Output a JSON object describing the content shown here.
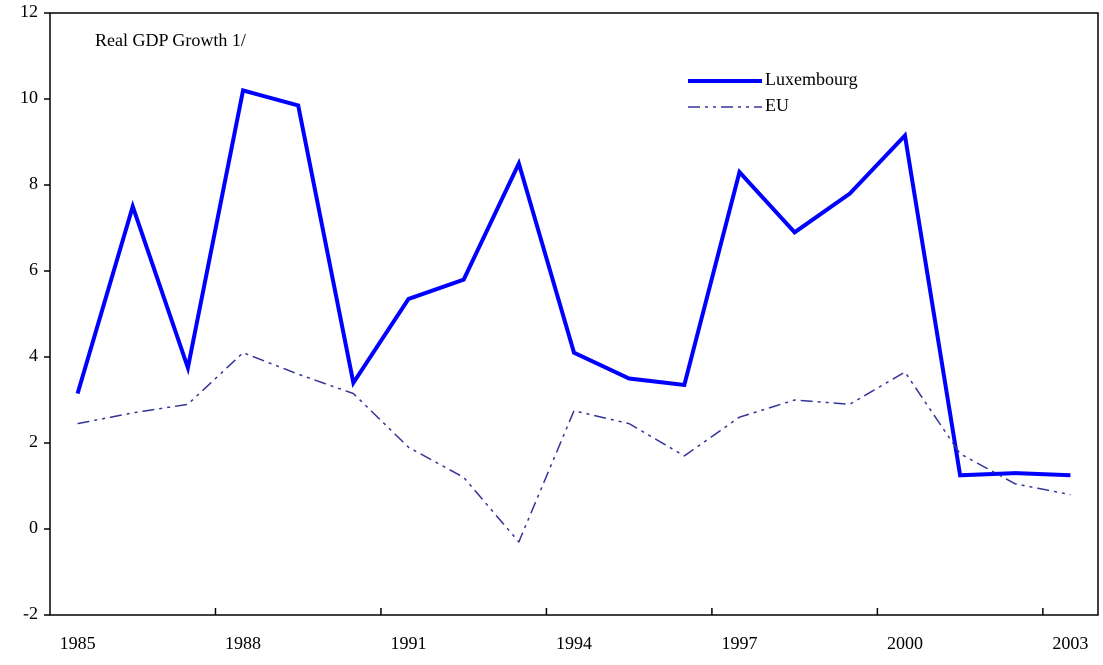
{
  "chart_data": {
    "type": "line",
    "annotation": "Real GDP Growth 1/",
    "categories": [
      "1985",
      null,
      null,
      "1988",
      null,
      null,
      "1991",
      null,
      null,
      "1994",
      null,
      null,
      "1997",
      null,
      null,
      "2000",
      null,
      null,
      "2003"
    ],
    "series": [
      {
        "name": "Luxembourg",
        "color": "#0000ff",
        "linestyle": "solid",
        "linewidth": 4,
        "values": [
          3.15,
          7.5,
          3.75,
          10.2,
          9.85,
          3.4,
          5.35,
          5.8,
          8.5,
          4.1,
          3.5,
          3.35,
          8.3,
          6.9,
          7.8,
          9.15,
          1.25,
          1.3,
          1.25
        ]
      },
      {
        "name": "EU",
        "color": "#333399",
        "linestyle": "dashdot",
        "linewidth": 1.5,
        "values": [
          2.45,
          2.7,
          2.9,
          4.1,
          3.6,
          3.15,
          1.9,
          1.2,
          -0.3,
          2.75,
          2.45,
          1.7,
          2.6,
          3.0,
          2.9,
          3.65,
          1.75,
          1.05,
          0.8
        ]
      }
    ],
    "ylim": [
      -2,
      12
    ],
    "yticks": [
      -2,
      0,
      2,
      4,
      6,
      8,
      10,
      12
    ],
    "grid": false
  }
}
